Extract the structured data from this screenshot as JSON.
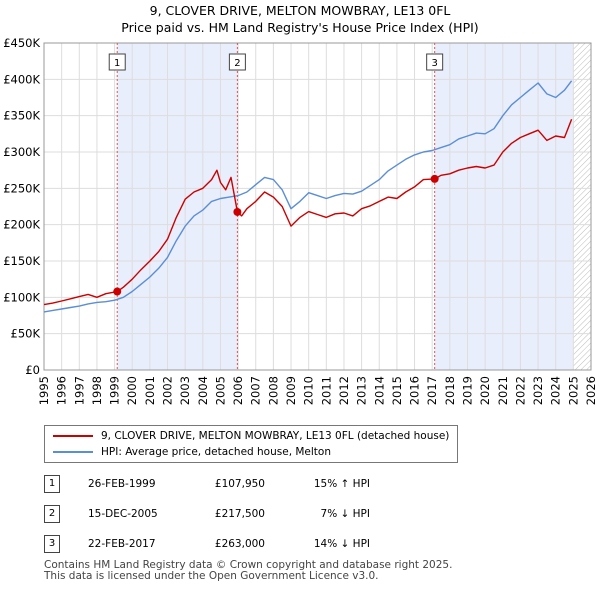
{
  "title": "9, CLOVER DRIVE, MELTON MOWBRAY, LE13 0FL",
  "subtitle": "Price paid vs. HM Land Registry's House Price Index (HPI)",
  "colors": {
    "price_paid": "#cc0000",
    "hpi": "#5b8ed6",
    "shade": "#e8eefb",
    "marker_line": "#dd5555"
  },
  "chart_data": {
    "type": "line",
    "title": "Price paid vs. HM Land Registry's House Price Index (HPI)",
    "xlim": [
      1995,
      2026
    ],
    "ylim": [
      0,
      450000
    ],
    "x_ticks": [
      "1995",
      "1996",
      "1997",
      "1998",
      "1999",
      "2000",
      "2001",
      "2002",
      "2003",
      "2004",
      "2005",
      "2006",
      "2007",
      "2008",
      "2009",
      "2010",
      "2011",
      "2012",
      "2013",
      "2014",
      "2015",
      "2016",
      "2017",
      "2018",
      "2019",
      "2020",
      "2021",
      "2022",
      "2023",
      "2024",
      "2025",
      "2026"
    ],
    "y_ticks": [
      {
        "value": 0,
        "label": "£0"
      },
      {
        "value": 50000,
        "label": "£50K"
      },
      {
        "value": 100000,
        "label": "£100K"
      },
      {
        "value": 150000,
        "label": "£150K"
      },
      {
        "value": 200000,
        "label": "£200K"
      },
      {
        "value": 250000,
        "label": "£250K"
      },
      {
        "value": 300000,
        "label": "£300K"
      },
      {
        "value": 350000,
        "label": "£350K"
      },
      {
        "value": 400000,
        "label": "£400K"
      },
      {
        "value": 450000,
        "label": "£450K"
      }
    ],
    "shaded_after": 2025.0,
    "series": [
      {
        "name": "9, CLOVER DRIVE, MELTON MOWBRAY, LE13 0FL (detached house)",
        "x": [
          1995.0,
          1995.5,
          1996.0,
          1996.5,
          1997.0,
          1997.5,
          1998.0,
          1998.5,
          1999.15,
          1999.5,
          2000.0,
          2000.5,
          2001.0,
          2001.5,
          2002.0,
          2002.5,
          2003.0,
          2003.5,
          2004.0,
          2004.5,
          2004.8,
          2005.0,
          2005.3,
          2005.6,
          2005.96,
          2006.2,
          2006.5,
          2007.0,
          2007.5,
          2008.0,
          2008.5,
          2009.0,
          2009.5,
          2010.0,
          2010.5,
          2011.0,
          2011.5,
          2012.0,
          2012.5,
          2013.0,
          2013.5,
          2014.0,
          2014.5,
          2015.0,
          2015.5,
          2016.0,
          2016.5,
          2017.14,
          2017.5,
          2018.0,
          2018.5,
          2019.0,
          2019.5,
          2020.0,
          2020.5,
          2021.0,
          2021.5,
          2022.0,
          2022.5,
          2023.0,
          2023.5,
          2024.0,
          2024.5,
          2024.9
        ],
        "values": [
          90000,
          92000,
          95000,
          98000,
          101000,
          104000,
          100000,
          105000,
          107950,
          114000,
          125000,
          138000,
          150000,
          163000,
          180000,
          210000,
          235000,
          245000,
          250000,
          262000,
          275000,
          258000,
          248000,
          265000,
          217500,
          212000,
          222000,
          232000,
          245000,
          238000,
          225000,
          198000,
          210000,
          218000,
          214000,
          210000,
          215000,
          216000,
          212000,
          222000,
          226000,
          232000,
          238000,
          236000,
          245000,
          252000,
          262000,
          263000,
          268000,
          270000,
          275000,
          278000,
          280000,
          278000,
          282000,
          300000,
          312000,
          320000,
          325000,
          330000,
          316000,
          322000,
          320000,
          345000
        ]
      },
      {
        "name": "HPI: Average price, detached house, Melton",
        "x": [
          1995.0,
          1995.5,
          1996.0,
          1996.5,
          1997.0,
          1997.5,
          1998.0,
          1998.5,
          1999.0,
          1999.5,
          2000.0,
          2000.5,
          2001.0,
          2001.5,
          2002.0,
          2002.5,
          2003.0,
          2003.5,
          2004.0,
          2004.5,
          2005.0,
          2005.5,
          2006.0,
          2006.5,
          2007.0,
          2007.5,
          2008.0,
          2008.5,
          2009.0,
          2009.5,
          2010.0,
          2010.5,
          2011.0,
          2011.5,
          2012.0,
          2012.5,
          2013.0,
          2013.5,
          2014.0,
          2014.5,
          2015.0,
          2015.5,
          2016.0,
          2016.5,
          2017.0,
          2017.5,
          2018.0,
          2018.5,
          2019.0,
          2019.5,
          2020.0,
          2020.5,
          2021.0,
          2021.5,
          2022.0,
          2022.5,
          2023.0,
          2023.5,
          2024.0,
          2024.5,
          2024.9
        ],
        "values": [
          80000,
          82000,
          84000,
          86000,
          88000,
          91000,
          93000,
          94000,
          96000,
          100000,
          108000,
          118000,
          128000,
          140000,
          155000,
          178000,
          198000,
          212000,
          220000,
          232000,
          236000,
          238000,
          240000,
          245000,
          255000,
          265000,
          262000,
          248000,
          222000,
          232000,
          244000,
          240000,
          236000,
          240000,
          243000,
          242000,
          246000,
          254000,
          262000,
          274000,
          282000,
          290000,
          296000,
          300000,
          302000,
          306000,
          310000,
          318000,
          322000,
          326000,
          325000,
          332000,
          350000,
          365000,
          375000,
          385000,
          395000,
          380000,
          375000,
          385000,
          398000
        ]
      }
    ],
    "sale_markers": [
      {
        "label": "1",
        "x": 1999.15,
        "value": 107950
      },
      {
        "label": "2",
        "x": 2005.96,
        "value": 217500
      },
      {
        "label": "3",
        "x": 2017.14,
        "value": 263000
      }
    ]
  },
  "legend": {
    "price_paid": "9, CLOVER DRIVE, MELTON MOWBRAY, LE13 0FL (detached house)",
    "hpi": "HPI: Average price, detached house, Melton"
  },
  "sales": [
    {
      "num": "1",
      "date": "26-FEB-1999",
      "price": "£107,950",
      "hpi": "15% ↑ HPI"
    },
    {
      "num": "2",
      "date": "15-DEC-2005",
      "price": "£217,500",
      "hpi": "7% ↓ HPI"
    },
    {
      "num": "3",
      "date": "22-FEB-2017",
      "price": "£263,000",
      "hpi": "14% ↓ HPI"
    }
  ],
  "footer": {
    "line1": "Contains HM Land Registry data © Crown copyright and database right 2025.",
    "line2": "This data is licensed under the Open Government Licence v3.0."
  }
}
